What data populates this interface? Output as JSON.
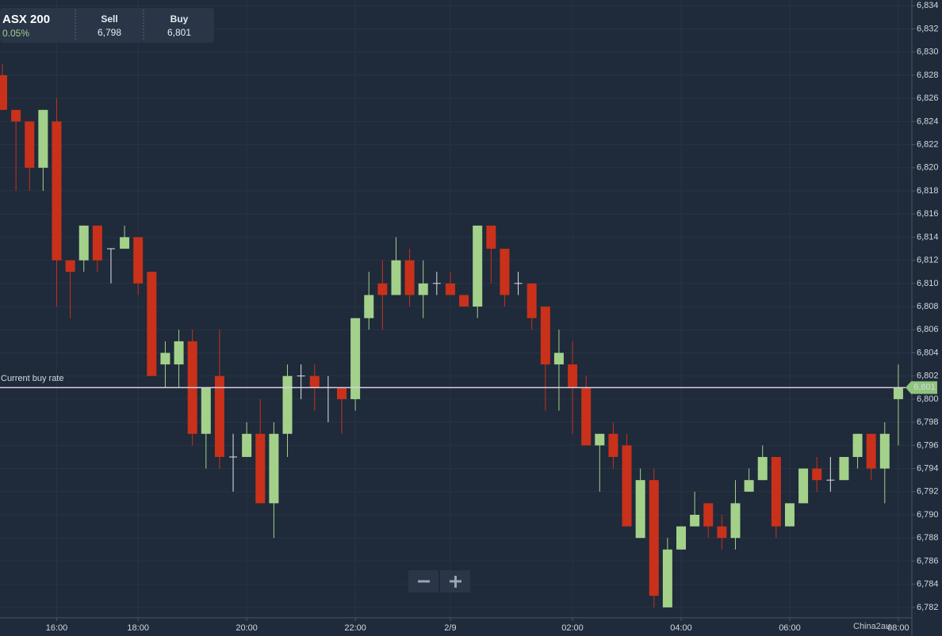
{
  "header": {
    "symbol": "ASX 200",
    "change": "0.05%",
    "sell_label": "Sell",
    "sell_value": "6,798",
    "buy_label": "Buy",
    "buy_value": "6,801"
  },
  "chart_data": {
    "type": "candlestick",
    "categories": [
      null,
      null,
      null,
      null,
      "16:00",
      null,
      null,
      null,
      null,
      null,
      "18:00",
      null,
      null,
      null,
      null,
      null,
      null,
      null,
      "20:00",
      null,
      null,
      null,
      null,
      null,
      null,
      null,
      "22:00",
      null,
      null,
      null,
      null,
      null,
      null,
      "2/9",
      null,
      null,
      null,
      null,
      null,
      null,
      null,
      null,
      "02:00",
      null,
      null,
      null,
      null,
      null,
      null,
      null,
      "04:00",
      null,
      null,
      null,
      null,
      null,
      null,
      null,
      "06:00",
      null,
      null,
      null,
      null,
      null,
      null,
      null,
      "08:00"
    ],
    "open": [
      6828,
      6825,
      6824,
      6820,
      6824,
      6812,
      6812,
      6815,
      6813,
      6813,
      6814,
      6811,
      6803,
      6803,
      6805,
      6797,
      6802,
      6795,
      6795,
      6797,
      6791,
      6797,
      6802,
      6802,
      6801,
      6801,
      6800,
      6807,
      6810,
      6809,
      6812,
      6809,
      6810,
      6810,
      6809,
      6808,
      6815,
      6813,
      6810,
      6810,
      6808,
      6803,
      6803,
      6801,
      6796,
      6797,
      6796,
      6788,
      6793,
      6782,
      6787,
      6789,
      6791,
      6789,
      6788,
      6792,
      6793,
      6795,
      6789,
      6791,
      6794,
      6793,
      6793,
      6795,
      6797,
      6794,
      6800
    ],
    "high": [
      6829,
      6825,
      6824,
      6825,
      6826,
      6812,
      6815,
      6815,
      6813,
      6815,
      6814,
      6811,
      6805,
      6806,
      6806,
      6801,
      6806,
      6797,
      6798,
      6800,
      6798,
      6803,
      6803,
      6803,
      6802,
      6801,
      6807,
      6811,
      6812,
      6814,
      6813,
      6812,
      6811,
      6811,
      6809,
      6815,
      6815,
      6813,
      6811,
      6810,
      6808,
      6806,
      6805,
      6802,
      6797,
      6798,
      6797,
      6794,
      6794,
      6788,
      6789,
      6792,
      6791,
      6790,
      6793,
      6794,
      6796,
      6795,
      6791,
      6794,
      6795,
      6795,
      6795,
      6797,
      6797,
      6798,
      6803
    ],
    "low": [
      6825,
      6818,
      6818,
      6818,
      6808,
      6807,
      6811,
      6811,
      6810,
      6813,
      6809,
      6802,
      6801,
      6801,
      6796,
      6794,
      6794,
      6792,
      6795,
      6791,
      6788,
      6795,
      6800,
      6799,
      6798,
      6797,
      6799,
      6806,
      6806,
      6809,
      6808,
      6807,
      6809,
      6809,
      6808,
      6807,
      6810,
      6808,
      6809,
      6806,
      6799,
      6799,
      6797,
      6796,
      6792,
      6794,
      6789,
      6788,
      6782,
      6782,
      6787,
      6789,
      6788,
      6787,
      6787,
      6792,
      6793,
      6788,
      6789,
      6791,
      6792,
      6792,
      6793,
      6794,
      6793,
      6791,
      6796
    ],
    "close": [
      6825,
      6824,
      6820,
      6825,
      6812,
      6811,
      6815,
      6812,
      6813,
      6814,
      6810,
      6802,
      6804,
      6805,
      6797,
      6801,
      6795,
      6795,
      6797,
      6791,
      6797,
      6802,
      6802,
      6801,
      6801,
      6800,
      6807,
      6809,
      6809,
      6812,
      6809,
      6810,
      6810,
      6809,
      6808,
      6815,
      6813,
      6809,
      6810,
      6807,
      6803,
      6804,
      6801,
      6796,
      6797,
      6795,
      6789,
      6793,
      6783,
      6787,
      6789,
      6790,
      6789,
      6788,
      6791,
      6793,
      6795,
      6789,
      6791,
      6794,
      6793,
      6793,
      6795,
      6797,
      6794,
      6797,
      6801
    ],
    "up_color": "#a3d18a",
    "down_color": "#c9311b",
    "ylim": [
      6781.1,
      6834.5
    ],
    "yticks": [
      {
        "value": 6782,
        "label": "6,782"
      },
      {
        "value": 6784,
        "label": "6,784"
      },
      {
        "value": 6786,
        "label": "6,786"
      },
      {
        "value": 6788,
        "label": "6,788"
      },
      {
        "value": 6790,
        "label": "6,790"
      },
      {
        "value": 6792,
        "label": "6,792"
      },
      {
        "value": 6794,
        "label": "6,794"
      },
      {
        "value": 6796,
        "label": "6,796"
      },
      {
        "value": 6798,
        "label": "6,798"
      },
      {
        "value": 6800,
        "label": "6,800"
      },
      {
        "value": 6802,
        "label": "6,802"
      },
      {
        "value": 6804,
        "label": "6,804"
      },
      {
        "value": 6806,
        "label": "6,806"
      },
      {
        "value": 6808,
        "label": "6,808"
      },
      {
        "value": 6810,
        "label": "6,810"
      },
      {
        "value": 6812,
        "label": "6,812"
      },
      {
        "value": 6814,
        "label": "6,814"
      },
      {
        "value": 6816,
        "label": "6,816"
      },
      {
        "value": 6818,
        "label": "6,818"
      },
      {
        "value": 6820,
        "label": "6,820"
      },
      {
        "value": 6822,
        "label": "6,822"
      },
      {
        "value": 6824,
        "label": "6,824"
      },
      {
        "value": 6826,
        "label": "6,826"
      },
      {
        "value": 6828,
        "label": "6,828"
      },
      {
        "value": 6830,
        "label": "6,830"
      },
      {
        "value": 6832,
        "label": "6,832"
      },
      {
        "value": 6834,
        "label": "6,834"
      }
    ],
    "grid": true,
    "current_rate": {
      "label": "Current buy rate",
      "value": 6801,
      "value_label": "6,801",
      "color": "#8fc47b"
    },
    "watermark": "China2au"
  }
}
